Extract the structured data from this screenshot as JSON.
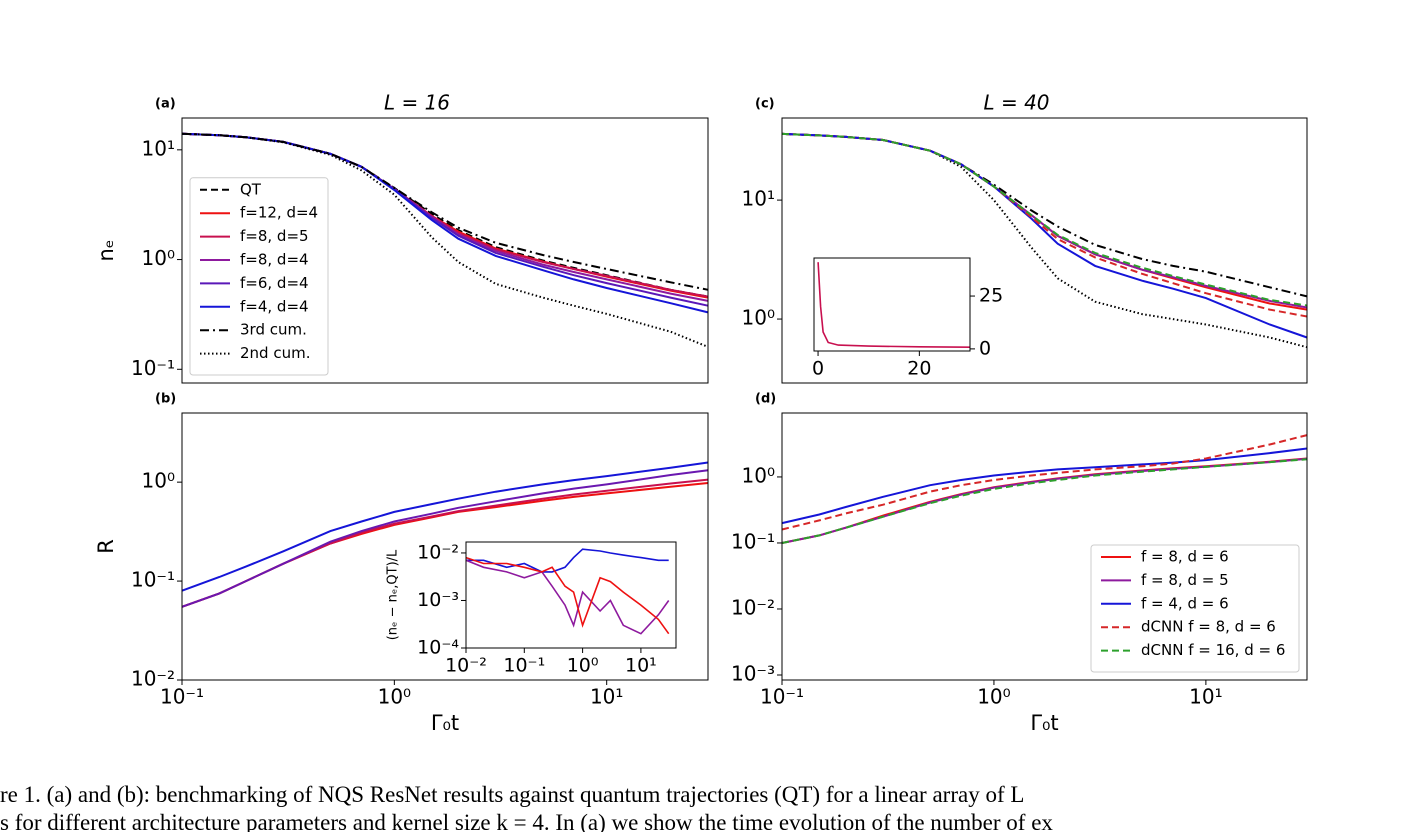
{
  "chart_data": [
    {
      "type": "line",
      "panel_label": "(a)",
      "title": "L = 16",
      "ylabel": "nₑ",
      "xscale": "log",
      "yscale": "log",
      "legend": "lower left",
      "xlim": [
        0.1,
        30
      ],
      "ylim": [
        0.075,
        19.5
      ],
      "yticks": [
        {
          "value": 0.1,
          "label": "10⁻¹"
        },
        {
          "value": 1,
          "label": "10⁰"
        },
        {
          "value": 10,
          "label": "10¹"
        }
      ],
      "x": [
        0.1,
        0.15,
        0.2,
        0.3,
        0.5,
        0.7,
        1,
        1.5,
        2,
        3,
        5,
        7,
        10,
        20,
        30
      ],
      "series": [
        {
          "name": "QT",
          "color": "#000000",
          "dash": "dashed",
          "values": [
            14,
            13.6,
            13,
            11.8,
            9.2,
            7,
            4.5,
            2.6,
            1.85,
            1.3,
            0.98,
            0.84,
            0.72,
            0.53,
            0.46
          ]
        },
        {
          "name": "f=12, d=4",
          "color": "#ee1111",
          "values": [
            14,
            13.6,
            13,
            11.8,
            9.2,
            7,
            4.4,
            2.5,
            1.8,
            1.26,
            0.96,
            0.82,
            0.7,
            0.52,
            0.45
          ]
        },
        {
          "name": "f=8, d=5",
          "color": "#c8104f",
          "values": [
            14,
            13.6,
            13,
            11.8,
            9.2,
            7,
            4.4,
            2.5,
            1.75,
            1.24,
            0.95,
            0.82,
            0.71,
            0.53,
            0.46
          ]
        },
        {
          "name": "f=8, d=4",
          "color": "#8e1a9e",
          "values": [
            14,
            13.6,
            13,
            11.8,
            9.2,
            7,
            4.4,
            2.45,
            1.7,
            1.2,
            0.9,
            0.77,
            0.66,
            0.49,
            0.42
          ]
        },
        {
          "name": "f=6, d=4",
          "color": "#5a18b8",
          "values": [
            14,
            13.6,
            13,
            11.8,
            9.2,
            7,
            4.4,
            2.4,
            1.65,
            1.15,
            0.86,
            0.72,
            0.61,
            0.45,
            0.38
          ]
        },
        {
          "name": "f=4, d=4",
          "color": "#1515d8",
          "values": [
            14,
            13.6,
            13,
            11.8,
            9.2,
            7,
            4.3,
            2.3,
            1.55,
            1.08,
            0.8,
            0.66,
            0.55,
            0.4,
            0.33
          ]
        },
        {
          "name": "3rd cum.",
          "color": "#000000",
          "dash": "dashdot",
          "values": [
            14,
            13.6,
            13,
            11.8,
            9.2,
            7,
            4.5,
            2.7,
            1.95,
            1.42,
            1.1,
            0.95,
            0.82,
            0.62,
            0.53
          ]
        },
        {
          "name": "2nd cum.",
          "color": "#000000",
          "dash": "dotted",
          "values": [
            14,
            13.6,
            13,
            11.7,
            9,
            6.5,
            3.9,
            1.6,
            0.95,
            0.6,
            0.45,
            0.38,
            0.32,
            0.22,
            0.16
          ]
        }
      ]
    },
    {
      "type": "line",
      "panel_label": "(b)",
      "xlabel": "Γ₀t",
      "ylabel": "R",
      "xscale": "log",
      "yscale": "log",
      "xlim": [
        0.1,
        30
      ],
      "ylim": [
        0.01,
        5
      ],
      "xticks": [
        {
          "value": 0.1,
          "label": "10⁻¹"
        },
        {
          "value": 1,
          "label": "10⁰"
        },
        {
          "value": 10,
          "label": "10¹"
        }
      ],
      "yticks": [
        {
          "value": 0.01,
          "label": "10⁻²"
        },
        {
          "value": 0.1,
          "label": "10⁻¹"
        },
        {
          "value": 1,
          "label": "10⁰"
        }
      ],
      "x": [
        0.1,
        0.15,
        0.2,
        0.3,
        0.5,
        0.7,
        1,
        1.5,
        2,
        3,
        5,
        7,
        10,
        20,
        30
      ],
      "series": [
        {
          "color": "#ee1111",
          "values": [
            0.055,
            0.075,
            0.1,
            0.15,
            0.24,
            0.3,
            0.37,
            0.44,
            0.5,
            0.56,
            0.65,
            0.71,
            0.77,
            0.9,
            0.98
          ]
        },
        {
          "color": "#c8104f",
          "values": [
            0.055,
            0.075,
            0.1,
            0.15,
            0.24,
            0.31,
            0.38,
            0.45,
            0.51,
            0.58,
            0.68,
            0.75,
            0.82,
            0.97,
            1.06
          ]
        },
        {
          "color": "#6a18b0",
          "values": [
            0.055,
            0.075,
            0.1,
            0.15,
            0.25,
            0.32,
            0.4,
            0.48,
            0.55,
            0.64,
            0.77,
            0.86,
            0.95,
            1.18,
            1.32
          ]
        },
        {
          "color": "#1515d8",
          "values": [
            0.08,
            0.11,
            0.14,
            0.2,
            0.32,
            0.4,
            0.5,
            0.6,
            0.68,
            0.8,
            0.95,
            1.05,
            1.15,
            1.4,
            1.58
          ]
        }
      ]
    },
    {
      "type": "line",
      "panel_label": "(c)",
      "title": "L = 40",
      "xscale": "log",
      "yscale": "log",
      "xlim": [
        0.1,
        30
      ],
      "ylim": [
        0.29,
        49
      ],
      "yticks": [
        {
          "value": 1,
          "label": "10⁰"
        },
        {
          "value": 10,
          "label": "10¹"
        }
      ],
      "x": [
        0.1,
        0.15,
        0.2,
        0.3,
        0.5,
        0.7,
        1,
        1.5,
        2,
        3,
        5,
        7,
        10,
        20,
        30
      ],
      "series": [
        {
          "color": "#000000",
          "dash": "dashdot",
          "values": [
            36,
            35,
            34,
            32,
            26,
            20,
            13.5,
            8.2,
            6,
            4.2,
            3.2,
            2.8,
            2.5,
            1.85,
            1.55
          ]
        },
        {
          "color": "#000000",
          "dash": "dotted",
          "values": [
            36,
            35,
            34,
            32,
            26,
            19,
            10,
            4,
            2.2,
            1.4,
            1.1,
            1.0,
            0.9,
            0.7,
            0.58
          ]
        },
        {
          "color": "#ee1111",
          "values": [
            36,
            35,
            34,
            32,
            26,
            20,
            13,
            7.5,
            5,
            3.5,
            2.6,
            2.2,
            1.85,
            1.35,
            1.2
          ]
        },
        {
          "color": "#8e1a9e",
          "values": [
            36,
            35,
            34,
            32,
            26,
            20,
            13,
            7.5,
            5,
            3.5,
            2.6,
            2.25,
            1.9,
            1.42,
            1.25
          ]
        },
        {
          "color": "#1515d8",
          "values": [
            36,
            35,
            34,
            32,
            26,
            20,
            13,
            7,
            4.3,
            2.8,
            2.1,
            1.8,
            1.5,
            0.9,
            0.7
          ]
        },
        {
          "color": "#d62728",
          "dash": "dashed",
          "values": [
            36,
            35,
            34,
            32,
            26,
            20,
            13,
            7.2,
            4.7,
            3.3,
            2.4,
            2.0,
            1.65,
            1.2,
            1.05
          ]
        },
        {
          "color": "#2ca02c",
          "dash": "dashed",
          "values": [
            36,
            35,
            34,
            32,
            26,
            20,
            13,
            7.5,
            5.1,
            3.6,
            2.7,
            2.3,
            1.95,
            1.45,
            1.3
          ]
        }
      ]
    },
    {
      "type": "line",
      "panel_label": "(d)",
      "xlabel": "Γ₀t",
      "xscale": "log",
      "yscale": "log",
      "legend": "lower right",
      "xlim": [
        0.1,
        30
      ],
      "ylim": [
        0.00084,
        9.3
      ],
      "xticks": [
        {
          "value": 0.1,
          "label": "10⁻¹"
        },
        {
          "value": 1,
          "label": "10⁰"
        },
        {
          "value": 10,
          "label": "10¹"
        }
      ],
      "yticks": [
        {
          "value": 0.001,
          "label": "10⁻³"
        },
        {
          "value": 0.01,
          "label": "10⁻²"
        },
        {
          "value": 0.1,
          "label": "10⁻¹"
        },
        {
          "value": 1,
          "label": "10⁰"
        }
      ],
      "x": [
        0.1,
        0.15,
        0.2,
        0.3,
        0.5,
        0.7,
        1,
        1.5,
        2,
        3,
        5,
        7,
        10,
        20,
        30
      ],
      "series": [
        {
          "name": "f = 8, d = 6",
          "color": "#ee1111",
          "values": [
            0.1,
            0.13,
            0.17,
            0.26,
            0.42,
            0.55,
            0.7,
            0.84,
            0.95,
            1.1,
            1.25,
            1.35,
            1.45,
            1.7,
            1.9
          ]
        },
        {
          "name": "f = 8, d = 5",
          "color": "#8e1a9e",
          "values": [
            0.1,
            0.13,
            0.17,
            0.25,
            0.41,
            0.54,
            0.69,
            0.83,
            0.94,
            1.08,
            1.23,
            1.33,
            1.43,
            1.68,
            1.88
          ]
        },
        {
          "name": "f = 4, d = 6",
          "color": "#1515d8",
          "values": [
            0.2,
            0.27,
            0.35,
            0.5,
            0.75,
            0.9,
            1.05,
            1.2,
            1.3,
            1.4,
            1.55,
            1.65,
            1.8,
            2.3,
            2.7
          ]
        },
        {
          "name": "dCNN f = 8, d = 6",
          "color": "#d62728",
          "dash": "dashed",
          "values": [
            0.16,
            0.22,
            0.28,
            0.38,
            0.6,
            0.75,
            0.9,
            1.05,
            1.15,
            1.3,
            1.45,
            1.6,
            1.9,
            3.1,
            4.3
          ]
        },
        {
          "name": "dCNN f = 16, d = 6",
          "color": "#2ca02c",
          "dash": "dashed",
          "values": [
            0.1,
            0.13,
            0.17,
            0.25,
            0.4,
            0.52,
            0.66,
            0.8,
            0.9,
            1.05,
            1.2,
            1.3,
            1.42,
            1.68,
            1.85
          ]
        }
      ]
    },
    {
      "type": "line",
      "ylabel": "(nₑ − nₑ,QT)/L",
      "xscale": "log",
      "yscale": "log",
      "xlim": [
        0.01,
        40
      ],
      "ylim": [
        0.0001,
        0.017
      ],
      "xticks": [
        {
          "value": 0.01,
          "label": "10⁻²"
        },
        {
          "value": 0.1,
          "label": "10⁻¹"
        },
        {
          "value": 1,
          "label": "10⁰"
        },
        {
          "value": 10,
          "label": "10¹"
        }
      ],
      "yticks": [
        {
          "value": 0.0001,
          "label": "10⁻⁴"
        },
        {
          "value": 0.001,
          "label": "10⁻³"
        },
        {
          "value": 0.01,
          "label": "10⁻²"
        }
      ],
      "x": [
        0.01,
        0.02,
        0.05,
        0.1,
        0.2,
        0.3,
        0.5,
        0.7,
        1,
        2,
        3,
        5,
        10,
        20,
        30
      ],
      "series": [
        {
          "color": "#1515d8",
          "values": [
            0.007,
            0.007,
            0.005,
            0.006,
            0.004,
            0.004,
            0.005,
            0.008,
            0.012,
            0.011,
            0.01,
            0.009,
            0.008,
            0.007,
            0.007
          ]
        },
        {
          "color": "#8e1a9e",
          "values": [
            0.007,
            0.005,
            0.004,
            0.003,
            0.004,
            0.002,
            0.0008,
            0.0003,
            0.0015,
            0.0006,
            0.001,
            0.0003,
            0.0002,
            0.0005,
            0.001
          ]
        },
        {
          "color": "#ee1111",
          "values": [
            0.008,
            0.006,
            0.006,
            0.005,
            0.004,
            0.005,
            0.002,
            0.0015,
            0.0003,
            0.003,
            0.0025,
            0.0015,
            0.0008,
            0.0004,
            0.0002
          ]
        }
      ]
    },
    {
      "type": "line",
      "xscale": "linear",
      "yscale": "linear",
      "ytick_side": "right",
      "xlim": [
        -0.8,
        30
      ],
      "ylim": [
        -1,
        43
      ],
      "xticks": [
        0,
        20
      ],
      "yticks": [
        0,
        25
      ],
      "x": [
        0,
        0.5,
        1,
        2,
        4,
        10,
        20,
        30
      ],
      "series": [
        {
          "color": "#c8104f",
          "values": [
            41,
            20,
            8,
            3,
            1.8,
            1.3,
            1,
            0.8
          ]
        }
      ]
    }
  ],
  "caption": [
    "re 1.  (a) and (b): benchmarking of NQS ResNet results against quantum trajectories (QT) for a linear array of L",
    "s for different architecture parameters and kernel size k = 4. In (a) we show the time evolution of the number of ex"
  ]
}
